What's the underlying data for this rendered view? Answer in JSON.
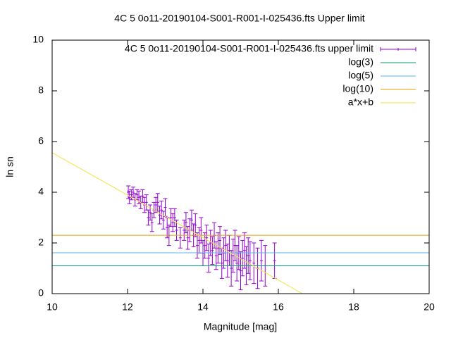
{
  "chart_data": {
    "type": "scatter",
    "title": "4C 5 0o11-20190104-S001-R001-I-025436.fts Upper limit",
    "x_label": "Magnitude [mag]",
    "y_label": "ln sn",
    "xlim": [
      10,
      20
    ],
    "ylim": [
      0,
      10
    ],
    "xticks": [
      10,
      12,
      14,
      16,
      18,
      20
    ],
    "yticks": [
      0,
      2,
      4,
      6,
      8,
      10
    ],
    "legend": "top-right",
    "series": [
      {
        "name": "4C 5 0o11-20190104-S001-R001-I-025436.fts upper limit",
        "type": "errorbar",
        "color": "#9400d3",
        "x": [
          12.02,
          12.05,
          12.1,
          12.15,
          12.2,
          12.25,
          12.3,
          12.35,
          12.4,
          12.45,
          12.5,
          12.55,
          12.6,
          12.65,
          12.7,
          12.75,
          12.8,
          12.85,
          12.9,
          12.95,
          13.0,
          13.05,
          13.1,
          13.15,
          13.2,
          13.25,
          13.3,
          13.4,
          13.5,
          13.55,
          13.6,
          13.65,
          13.7,
          13.75,
          13.8,
          13.85,
          13.9,
          13.95,
          14.0,
          14.05,
          14.1,
          14.15,
          14.2,
          14.25,
          14.3,
          14.35,
          14.4,
          14.45,
          14.5,
          14.55,
          14.6,
          14.65,
          14.7,
          14.75,
          14.8,
          14.85,
          14.9,
          14.95,
          15.0,
          15.05,
          15.1,
          15.15,
          15.2,
          15.25,
          15.35,
          15.45,
          15.55,
          15.65,
          15.9
        ],
        "values": [
          4.0,
          3.8,
          3.9,
          4.0,
          3.7,
          3.9,
          3.8,
          3.6,
          3.85,
          3.5,
          3.6,
          3.0,
          3.2,
          2.8,
          3.3,
          3.5,
          3.6,
          3.1,
          3.3,
          2.9,
          3.4,
          2.6,
          2.3,
          3.0,
          2.8,
          3.0,
          2.5,
          2.2,
          2.5,
          2.8,
          2.2,
          2.5,
          2.9,
          2.3,
          2.7,
          1.9,
          2.1,
          2.5,
          1.6,
          1.9,
          2.2,
          1.4,
          2.0,
          1.7,
          2.3,
          1.5,
          1.8,
          2.1,
          1.2,
          1.6,
          1.9,
          1.3,
          1.7,
          1.0,
          1.5,
          1.9,
          1.2,
          1.6,
          0.9,
          1.4,
          1.7,
          1.1,
          1.5,
          1.3,
          1.2,
          1.0,
          1.3,
          1.1,
          1.3
        ],
        "errors": [
          0.25,
          0.25,
          0.2,
          0.2,
          0.25,
          0.2,
          0.25,
          0.25,
          0.25,
          0.3,
          0.3,
          0.3,
          0.3,
          0.35,
          0.3,
          0.3,
          0.35,
          0.35,
          0.35,
          0.35,
          0.35,
          0.4,
          0.4,
          0.35,
          0.35,
          0.35,
          0.4,
          0.4,
          0.4,
          0.4,
          0.45,
          0.45,
          0.4,
          0.45,
          0.45,
          0.5,
          0.5,
          0.5,
          0.5,
          0.5,
          0.5,
          0.55,
          0.5,
          0.55,
          0.5,
          0.55,
          0.6,
          0.55,
          0.6,
          0.6,
          0.6,
          0.65,
          0.6,
          0.7,
          0.65,
          0.6,
          0.7,
          0.65,
          0.75,
          0.7,
          0.7,
          0.75,
          0.7,
          0.75,
          0.8,
          0.8,
          0.8,
          0.8,
          0.7
        ]
      },
      {
        "name": "log(3)",
        "type": "hline",
        "color": "#009e73",
        "values": [
          1.0986
        ]
      },
      {
        "name": "log(5)",
        "type": "hline",
        "color": "#56b4e9",
        "values": [
          1.6094
        ]
      },
      {
        "name": "log(10)",
        "type": "hline",
        "color": "#e69f00",
        "values": [
          2.3026
        ]
      },
      {
        "name": "a*x+b",
        "type": "line",
        "color": "#f0e442",
        "x": [
          10,
          16.64
        ],
        "values": [
          5.56,
          0
        ]
      }
    ]
  }
}
